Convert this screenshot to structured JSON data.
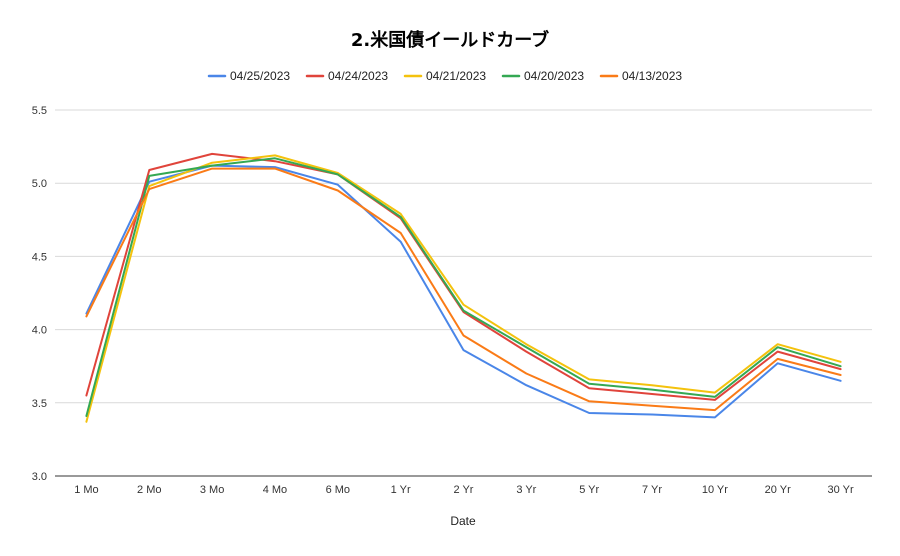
{
  "chart_data": {
    "type": "line",
    "title": "2.米国債イールドカーブ",
    "xlabel": "Date",
    "ylabel": "",
    "ylim": [
      3.0,
      5.5
    ],
    "yticks": [
      "3.0",
      "3.5",
      "4.0",
      "4.5",
      "5.0",
      "5.5"
    ],
    "grid": true,
    "legend_position": "top",
    "categories": [
      "1 Mo",
      "2 Mo",
      "3 Mo",
      "4 Mo",
      "6 Mo",
      "1 Yr",
      "2 Yr",
      "3 Yr",
      "5 Yr",
      "7 Yr",
      "10 Yr",
      "20 Yr",
      "30 Yr"
    ],
    "series": [
      {
        "name": "04/25/2023",
        "color": "#4a86e8",
        "values": [
          4.11,
          5.01,
          5.12,
          5.11,
          4.99,
          4.6,
          3.86,
          3.62,
          3.43,
          3.42,
          3.4,
          3.77,
          3.65
        ]
      },
      {
        "name": "04/24/2023",
        "color": "#e0443b",
        "values": [
          3.55,
          5.09,
          5.2,
          5.15,
          5.06,
          4.76,
          4.12,
          3.85,
          3.6,
          3.56,
          3.52,
          3.85,
          3.73
        ]
      },
      {
        "name": "04/21/2023",
        "color": "#f4c20d",
        "values": [
          3.37,
          4.98,
          5.14,
          5.19,
          5.07,
          4.79,
          4.17,
          3.9,
          3.66,
          3.62,
          3.57,
          3.9,
          3.78
        ]
      },
      {
        "name": "04/20/2023",
        "color": "#34a853",
        "values": [
          3.41,
          5.05,
          5.12,
          5.17,
          5.06,
          4.77,
          4.13,
          3.88,
          3.63,
          3.59,
          3.54,
          3.88,
          3.75
        ]
      },
      {
        "name": "04/13/2023",
        "color": "#fa7b17",
        "values": [
          4.09,
          4.96,
          5.1,
          5.1,
          4.95,
          4.66,
          3.96,
          3.7,
          3.51,
          3.48,
          3.45,
          3.8,
          3.69
        ]
      }
    ]
  }
}
